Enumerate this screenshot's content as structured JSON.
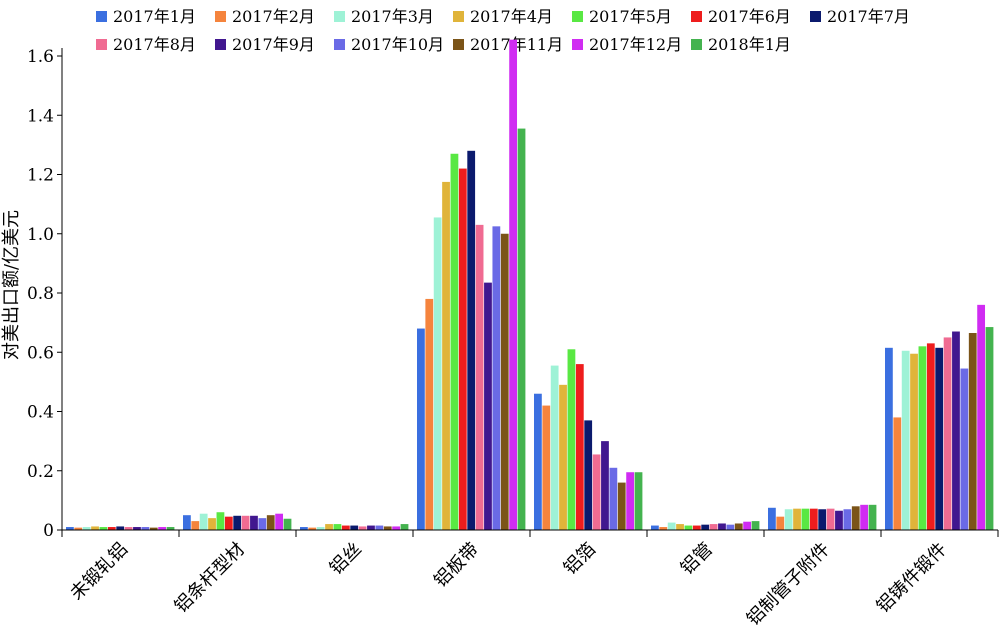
{
  "chart_data": {
    "type": "bar",
    "ylabel": "对美出口额/亿美元",
    "xlabel": "",
    "ylim": [
      0,
      1.6
    ],
    "y_ticks": [
      "0",
      "0.2",
      "0.4",
      "0.6",
      "0.8",
      "1.0",
      "1.2",
      "1.4",
      "1.6"
    ],
    "y_tick_values": [
      0,
      0.2,
      0.4,
      0.6,
      0.8,
      1.0,
      1.2,
      1.4,
      1.6
    ],
    "grid": false,
    "legend_position": "top",
    "categories": [
      "未锻轧铝",
      "铝条杆型材",
      "铝丝",
      "铝板带",
      "铝箔",
      "铝管",
      "铝制管子附件",
      "铝铸件锻件"
    ],
    "series": [
      {
        "name": "2017年1月",
        "color": "#3b6fe0",
        "values": [
          0.01,
          0.05,
          0.01,
          0.68,
          0.46,
          0.015,
          0.075,
          0.615
        ]
      },
      {
        "name": "2017年2月",
        "color": "#f5843d",
        "values": [
          0.008,
          0.03,
          0.008,
          0.78,
          0.42,
          0.01,
          0.045,
          0.38
        ]
      },
      {
        "name": "2017年3月",
        "color": "#9ef2d6",
        "values": [
          0.01,
          0.055,
          0.01,
          1.055,
          0.555,
          0.025,
          0.07,
          0.605
        ]
      },
      {
        "name": "2017年4月",
        "color": "#e0b43a",
        "values": [
          0.012,
          0.04,
          0.02,
          1.175,
          0.49,
          0.02,
          0.072,
          0.595
        ]
      },
      {
        "name": "2017年5月",
        "color": "#59e843",
        "values": [
          0.01,
          0.06,
          0.02,
          1.27,
          0.61,
          0.015,
          0.072,
          0.62
        ]
      },
      {
        "name": "2017年6月",
        "color": "#ee1d1d",
        "values": [
          0.01,
          0.045,
          0.015,
          1.22,
          0.56,
          0.015,
          0.072,
          0.63
        ]
      },
      {
        "name": "2017年7月",
        "color": "#0b1a6d",
        "values": [
          0.012,
          0.048,
          0.015,
          1.28,
          0.37,
          0.018,
          0.07,
          0.615
        ]
      },
      {
        "name": "2017年8月",
        "color": "#f06b92",
        "values": [
          0.01,
          0.048,
          0.012,
          1.03,
          0.255,
          0.02,
          0.072,
          0.65
        ]
      },
      {
        "name": "2017年9月",
        "color": "#41178f",
        "values": [
          0.01,
          0.048,
          0.015,
          0.835,
          0.3,
          0.022,
          0.065,
          0.67
        ]
      },
      {
        "name": "2017年10月",
        "color": "#6a6ae6",
        "values": [
          0.01,
          0.04,
          0.015,
          1.025,
          0.21,
          0.018,
          0.07,
          0.545
        ]
      },
      {
        "name": "2017年11月",
        "color": "#7b5418",
        "values": [
          0.008,
          0.05,
          0.012,
          1.0,
          0.16,
          0.022,
          0.08,
          0.665
        ]
      },
      {
        "name": "2017年12月",
        "color": "#d02cf2",
        "values": [
          0.01,
          0.055,
          0.012,
          1.655,
          0.195,
          0.028,
          0.085,
          0.76
        ]
      },
      {
        "name": "2018年1月",
        "color": "#44b34f",
        "values": [
          0.01,
          0.038,
          0.02,
          1.355,
          0.195,
          0.03,
          0.085,
          0.685
        ]
      }
    ]
  }
}
